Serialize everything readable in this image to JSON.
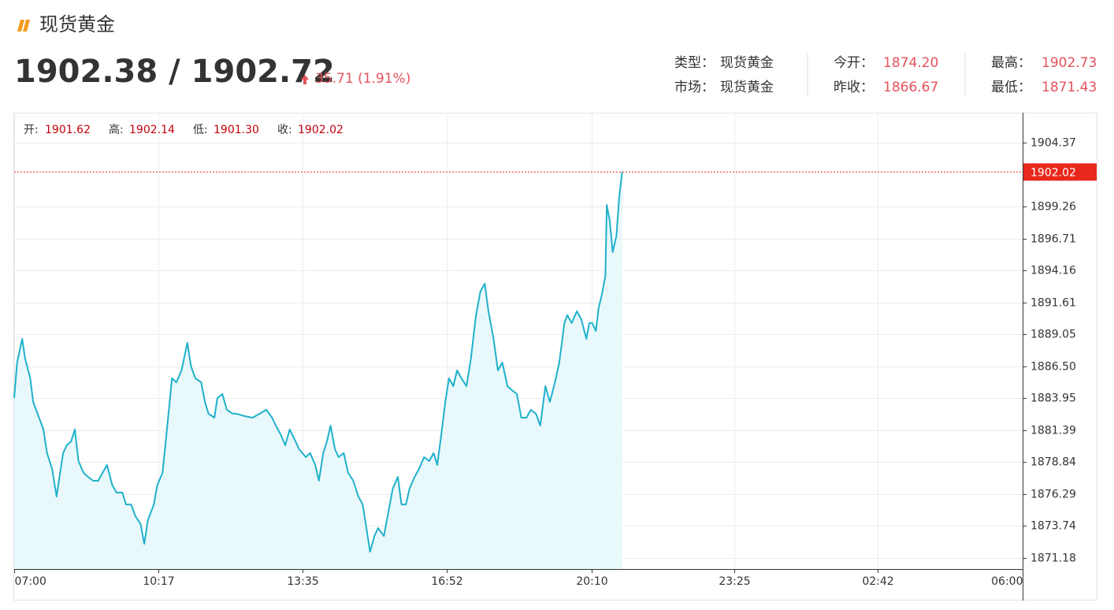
{
  "header": {
    "title": "现货黄金",
    "price": "1902.38 / 1902.72",
    "change": "35.71 (1.91%)"
  },
  "info": [
    {
      "label": "类型：",
      "value": "现货黄金"
    },
    {
      "label": "市场：",
      "value": "现货黄金"
    },
    {
      "label": "今开：",
      "value": "1874.20"
    },
    {
      "label": "昨收：",
      "value": "1866.67"
    },
    {
      "label": "最高：",
      "value": "1902.73"
    },
    {
      "label": "最低：",
      "value": "1871.43"
    }
  ],
  "ohlc": [
    {
      "label": "开:",
      "value": "1901.62"
    },
    {
      "label": "高:",
      "value": "1902.14"
    },
    {
      "label": "低:",
      "value": "1901.30"
    },
    {
      "label": "收:",
      "value": "1902.02"
    }
  ],
  "chart_data": {
    "type": "line",
    "color": "#1fb1cb",
    "area_color": "#e9f8fb",
    "grid": true,
    "x": [
      "07:00",
      "07:04",
      "07:11",
      "07:15",
      "07:22",
      "07:26",
      "07:32",
      "07:40",
      "07:45",
      "07:52",
      "07:58",
      "08:02",
      "08:07",
      "08:12",
      "08:18",
      "08:23",
      "08:28",
      "08:35",
      "08:41",
      "08:48",
      "08:55",
      "09:01",
      "09:07",
      "09:14",
      "09:20",
      "09:28",
      "09:33",
      "09:40",
      "09:46",
      "09:53",
      "09:58",
      "10:03",
      "10:11",
      "10:16",
      "10:23",
      "10:29",
      "10:36",
      "10:42",
      "10:49",
      "10:57",
      "11:02",
      "11:08",
      "11:16",
      "11:21",
      "11:26",
      "11:34",
      "11:38",
      "11:45",
      "11:51",
      "11:59",
      "12:04",
      "12:15",
      "12:26",
      "12:36",
      "12:45",
      "12:53",
      "12:58",
      "13:04",
      "13:11",
      "13:17",
      "13:25",
      "13:30",
      "13:39",
      "13:45",
      "13:52",
      "13:57",
      "14:03",
      "14:08",
      "14:13",
      "14:19",
      "14:24",
      "14:31",
      "14:37",
      "14:44",
      "14:51",
      "14:57",
      "15:02",
      "15:07",
      "15:13",
      "15:18",
      "15:26",
      "15:31",
      "15:38",
      "15:45",
      "15:50",
      "15:56",
      "16:01",
      "16:08",
      "16:14",
      "16:21",
      "16:28",
      "16:34",
      "16:39",
      "16:44",
      "16:50",
      "16:55",
      "17:01",
      "17:06",
      "17:12",
      "17:19",
      "17:25",
      "17:32",
      "17:38",
      "17:44",
      "17:49",
      "17:56",
      "18:02",
      "18:08",
      "18:15",
      "18:21",
      "18:28",
      "18:34",
      "18:41",
      "18:47",
      "18:54",
      "19:00",
      "19:07",
      "19:13",
      "19:20",
      "19:26",
      "19:33",
      "19:37",
      "19:43",
      "19:50",
      "19:56",
      "20:03",
      "20:07",
      "20:11",
      "20:16",
      "20:20",
      "20:24",
      "20:29",
      "20:31",
      "20:35",
      "20:39",
      "20:44",
      "20:48",
      "20:52"
    ],
    "values": [
      1883.96,
      1886.8,
      1888.69,
      1887.11,
      1885.54,
      1883.65,
      1882.71,
      1881.45,
      1879.56,
      1878.3,
      1876.09,
      1877.67,
      1879.56,
      1880.19,
      1880.5,
      1881.45,
      1878.93,
      1877.98,
      1877.67,
      1877.35,
      1877.35,
      1877.98,
      1878.61,
      1877.04,
      1876.41,
      1876.41,
      1875.46,
      1875.46,
      1874.52,
      1873.89,
      1872.31,
      1874.2,
      1875.46,
      1877.04,
      1877.98,
      1881.45,
      1885.54,
      1885.22,
      1886.17,
      1888.37,
      1886.48,
      1885.54,
      1885.22,
      1883.65,
      1882.71,
      1882.39,
      1883.96,
      1884.28,
      1883.02,
      1882.71,
      1882.71,
      1882.52,
      1882.39,
      1882.71,
      1883.02,
      1882.39,
      1881.76,
      1881.13,
      1880.19,
      1881.45,
      1880.5,
      1879.87,
      1879.24,
      1879.56,
      1878.61,
      1877.35,
      1879.56,
      1880.5,
      1881.76,
      1879.87,
      1879.24,
      1879.56,
      1877.98,
      1877.35,
      1876.09,
      1875.46,
      1873.57,
      1871.68,
      1872.94,
      1873.57,
      1872.94,
      1874.52,
      1876.72,
      1877.67,
      1875.46,
      1875.46,
      1876.72,
      1877.67,
      1878.3,
      1879.24,
      1878.93,
      1879.56,
      1878.61,
      1880.82,
      1883.65,
      1885.54,
      1884.91,
      1886.17,
      1885.54,
      1884.91,
      1887.11,
      1890.58,
      1892.47,
      1893.1,
      1890.89,
      1888.69,
      1886.17,
      1886.8,
      1884.91,
      1884.59,
      1884.28,
      1882.39,
      1882.39,
      1883.02,
      1882.71,
      1881.76,
      1884.91,
      1883.65,
      1885.22,
      1886.8,
      1889.95,
      1890.58,
      1889.95,
      1890.89,
      1890.26,
      1888.69,
      1889.95,
      1889.95,
      1889.32,
      1891.21,
      1892.15,
      1893.73,
      1899.39,
      1898.13,
      1895.62,
      1896.88,
      1900.02,
      1902.02
    ],
    "xlim": [
      "07:00",
      "06:00"
    ],
    "xticks": [
      "07:00",
      "10:17",
      "13:35",
      "16:52",
      "20:10",
      "23:25",
      "02:42",
      "06:00"
    ],
    "ylim": [
      1870.3,
      1906.76
    ],
    "yticks": [
      1871.18,
      1873.74,
      1876.29,
      1878.84,
      1881.39,
      1883.95,
      {
        "value": 1886.5,
        "label": "1886.50"
      },
      1889.05,
      1891.61,
      1894.16,
      1896.71,
      1899.26,
      1904.37
    ],
    "last_color": "#e8281c"
  }
}
